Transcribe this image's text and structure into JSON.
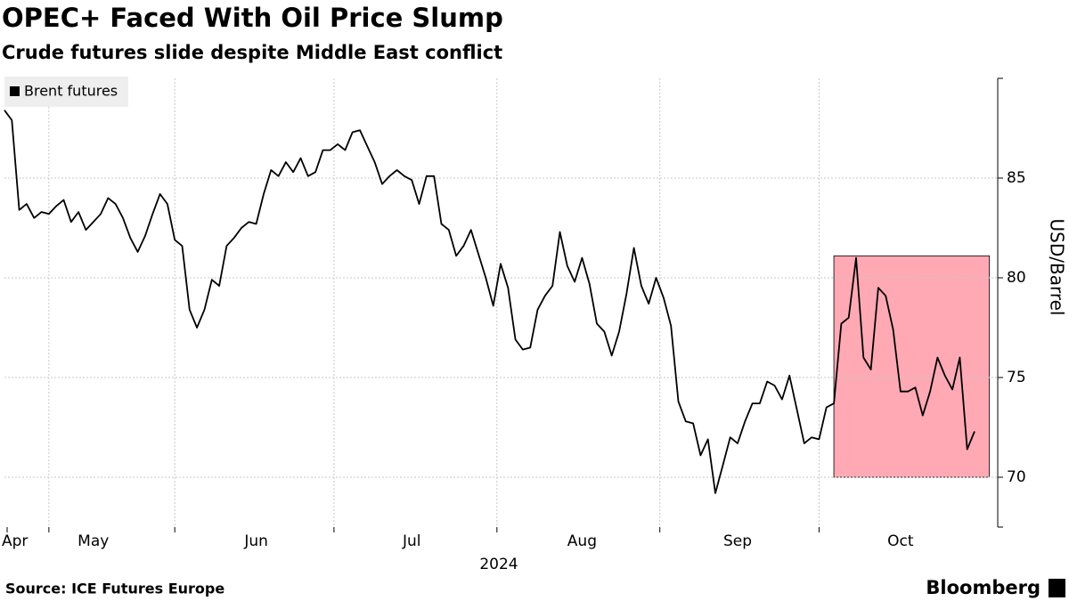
{
  "chart_data": {
    "type": "line",
    "title": "OPEC+ Faced With Oil Price Slump",
    "subtitle": "Crude futures slide despite Middle East conflict",
    "y_axis_label": "USD/Barrel",
    "x_axis_label": "2024",
    "source": "Source: ICE Futures Europe",
    "branding": "Bloomberg",
    "categories": [
      "Apr",
      null,
      null,
      null,
      null,
      null,
      null,
      null,
      null,
      null,
      null,
      null,
      "May",
      null,
      null,
      null,
      null,
      null,
      null,
      null,
      null,
      null,
      null,
      null,
      null,
      null,
      null,
      null,
      null,
      null,
      null,
      null,
      null,
      null,
      "Jun",
      null,
      null,
      null,
      null,
      null,
      null,
      null,
      null,
      null,
      null,
      null,
      null,
      null,
      null,
      null,
      null,
      null,
      null,
      null,
      null,
      "Jul",
      null,
      null,
      null,
      null,
      null,
      null,
      null,
      null,
      null,
      null,
      null,
      null,
      null,
      null,
      null,
      null,
      null,
      null,
      null,
      null,
      null,
      null,
      "Aug",
      null,
      null,
      null,
      null,
      null,
      null,
      null,
      null,
      null,
      null,
      null,
      null,
      null,
      null,
      null,
      null,
      null,
      null,
      null,
      null,
      "Sep",
      null,
      null,
      null,
      null,
      null,
      null,
      null,
      null,
      null,
      null,
      null,
      null,
      null,
      null,
      null,
      null,
      null,
      null,
      null,
      null,
      null,
      "Oct",
      null,
      null,
      null,
      null,
      null,
      null,
      null,
      null,
      null,
      null
    ],
    "series": [
      {
        "name": "Brent futures",
        "color": "#000000",
        "values": [
          88.4,
          87.9,
          83.4,
          83.7,
          83.0,
          83.3,
          83.2,
          83.6,
          83.9,
          82.8,
          83.3,
          82.4,
          82.8,
          83.2,
          84.0,
          83.7,
          83.0,
          82.0,
          81.3,
          82.1,
          83.2,
          84.2,
          83.7,
          81.9,
          81.6,
          78.4,
          77.5,
          78.4,
          79.9,
          79.6,
          81.6,
          82.0,
          82.5,
          82.8,
          82.7,
          84.2,
          85.4,
          85.1,
          85.8,
          85.3,
          86.0,
          85.1,
          85.3,
          86.4,
          86.4,
          86.7,
          86.4,
          87.3,
          87.4,
          86.6,
          85.8,
          84.7,
          85.1,
          85.4,
          85.1,
          84.9,
          83.7,
          85.1,
          85.1,
          82.7,
          82.4,
          81.1,
          81.6,
          82.4,
          81.2,
          80.0,
          78.6,
          80.7,
          79.5,
          76.9,
          76.4,
          76.5,
          78.4,
          79.1,
          79.6,
          82.3,
          80.6,
          79.8,
          81.0,
          79.7,
          77.7,
          77.3,
          76.1,
          77.3,
          79.2,
          81.5,
          79.6,
          78.7,
          80.0,
          79.0,
          77.6,
          73.8,
          72.8,
          72.7,
          71.1,
          71.9,
          69.2,
          70.6,
          72.0,
          71.7,
          72.8,
          73.7,
          73.7,
          74.8,
          74.6,
          73.9,
          75.1,
          73.4,
          71.7,
          72.0,
          71.9,
          73.5,
          73.7,
          77.7,
          78.0,
          81.0,
          76.0,
          75.4,
          79.5,
          79.1,
          77.4,
          74.3,
          74.3,
          74.5,
          73.1,
          74.3,
          76.0,
          75.1,
          74.4,
          76.0,
          71.4,
          72.3
        ]
      }
    ],
    "ylim": [
      67.5,
      90
    ],
    "yticks": [
      70,
      75,
      80,
      85
    ],
    "grid": true,
    "legend": "top-left",
    "highlight": {
      "x": [
        112,
        133
      ],
      "y": [
        70,
        81.1
      ],
      "color": "#ffa9b5"
    }
  }
}
